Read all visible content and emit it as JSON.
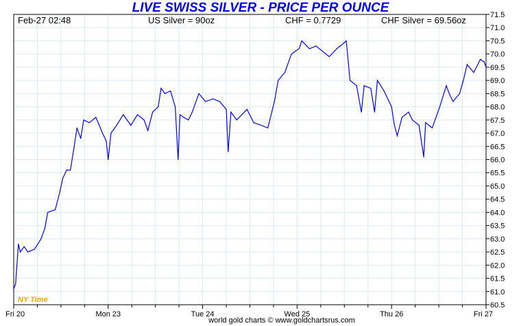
{
  "header": {
    "datetime": "Feb-27  02:48",
    "us_silver": "US Silver = 90oz",
    "chf_rate": "CHF = 0.7729",
    "chf_silver": "CHF Silver = 69.56oz"
  },
  "timezone_label": "NY Time",
  "credit": "world gold charts © www.goldchartsrus.com",
  "colors": {
    "line": "#0000ee",
    "title": "#0000ee",
    "grid": "#dde9f5",
    "timezone": "#f0a800"
  },
  "chart_data": {
    "type": "line",
    "title": "LIVE SWISS SILVER - PRICE PER OUNCE",
    "xlabel": "",
    "ylabel": "",
    "ylim": [
      60.5,
      71.5
    ],
    "xlim": [
      0,
      5
    ],
    "yticks": [
      "60.5",
      "61.0",
      "61.5",
      "62.0",
      "62.5",
      "63.0",
      "63.5",
      "64.0",
      "64.5",
      "65.0",
      "65.5",
      "66.0",
      "66.5",
      "67.0",
      "67.5",
      "68.0",
      "68.5",
      "69.0",
      "69.5",
      "70.0",
      "70.5",
      "71.0",
      "71.5"
    ],
    "xticks": [
      {
        "x": 0,
        "label": "Fri 20"
      },
      {
        "x": 1,
        "label": "Mon 23"
      },
      {
        "x": 2,
        "label": "Tue 24"
      },
      {
        "x": 3,
        "label": "Wed 25"
      },
      {
        "x": 4,
        "label": "Thu 26"
      },
      {
        "x": 5,
        "label": "Fri 27"
      }
    ],
    "axis_side": "right",
    "grid": true,
    "series": [
      {
        "name": "CHF Silver",
        "x": [
          0,
          0.02,
          0.05,
          0.07,
          0.11,
          0.15,
          0.22,
          0.29,
          0.33,
          0.36,
          0.44,
          0.49,
          0.52,
          0.56,
          0.6,
          0.64,
          0.67,
          0.71,
          0.74,
          0.8,
          0.87,
          0.94,
          0.98,
          1.0,
          1.03,
          1.09,
          1.16,
          1.24,
          1.31,
          1.38,
          1.42,
          1.47,
          1.53,
          1.56,
          1.6,
          1.66,
          1.71,
          1.74,
          1.76,
          1.8,
          1.85,
          1.89,
          1.96,
          2.03,
          2.11,
          2.18,
          2.25,
          2.27,
          2.3,
          2.36,
          2.47,
          2.54,
          2.62,
          2.69,
          2.76,
          2.8,
          2.87,
          2.94,
          3.02,
          3.05,
          3.13,
          3.2,
          3.27,
          3.34,
          3.42,
          3.49,
          3.52,
          3.56,
          3.63,
          3.68,
          3.71,
          3.78,
          3.82,
          3.85,
          3.92,
          4.0,
          4.03,
          4.06,
          4.11,
          4.18,
          4.22,
          4.29,
          4.34,
          4.36,
          4.43,
          4.51,
          4.58,
          4.61,
          4.65,
          4.72,
          4.76,
          4.8,
          4.87,
          4.94,
          4.98,
          5.0
        ],
        "values": [
          61.1,
          61.3,
          62.8,
          62.5,
          62.7,
          62.5,
          62.6,
          63.0,
          63.4,
          64.0,
          64.1,
          64.8,
          65.3,
          65.6,
          65.6,
          66.5,
          67.2,
          66.8,
          67.5,
          67.4,
          67.6,
          67.0,
          66.7,
          66.0,
          67.0,
          67.3,
          67.7,
          67.3,
          67.7,
          67.5,
          67.1,
          67.8,
          68.0,
          68.7,
          68.5,
          68.6,
          68.0,
          66.0,
          67.7,
          67.6,
          67.5,
          67.8,
          68.5,
          68.2,
          68.3,
          68.2,
          67.9,
          66.3,
          67.8,
          67.5,
          67.9,
          67.4,
          67.3,
          67.2,
          68.2,
          69.0,
          69.3,
          70.0,
          70.2,
          70.5,
          70.2,
          70.3,
          70.1,
          69.9,
          70.2,
          70.4,
          70.5,
          69.0,
          68.8,
          67.8,
          68.8,
          68.7,
          67.8,
          69.0,
          68.6,
          68.0,
          67.3,
          66.9,
          67.6,
          67.8,
          67.5,
          67.3,
          66.1,
          67.4,
          67.2,
          68.0,
          68.8,
          68.5,
          68.2,
          68.5,
          69.0,
          69.6,
          69.3,
          69.8,
          69.7,
          69.5
        ]
      }
    ]
  }
}
